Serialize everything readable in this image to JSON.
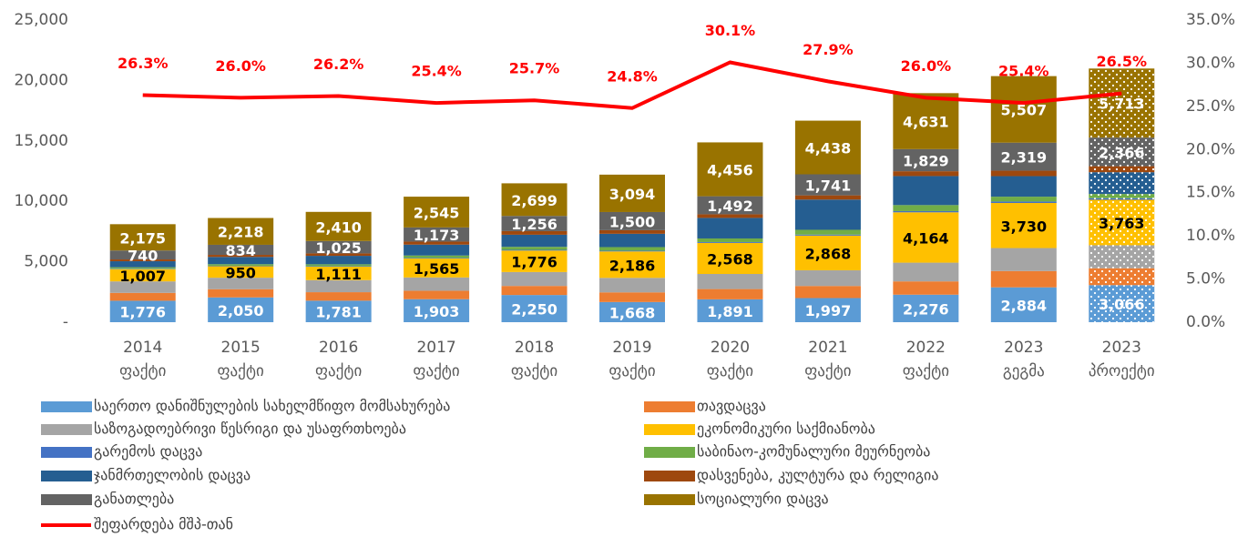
{
  "chart_data": {
    "type": "stacked_bar_line",
    "categories": [
      "2014\nფაქტი",
      "2015\nფაქტი",
      "2016\nფაქტი",
      "2017\nფაქტი",
      "2018\nფაქტი",
      "2019\nფაქტი",
      "2020\nფაქტი",
      "2021\nფაქტი",
      "2022\nფაქტი",
      "2023\nგეგმა",
      "2023\nპროექტი"
    ],
    "ylim": [
      0,
      25000
    ],
    "yticks": [
      {
        "value": 0,
        "label": "-"
      },
      {
        "value": 5000,
        "label": "5,000"
      },
      {
        "value": 10000,
        "label": "10,000"
      },
      {
        "value": 15000,
        "label": "15,000"
      },
      {
        "value": 20000,
        "label": "20,000"
      },
      {
        "value": 25000,
        "label": "25,000"
      }
    ],
    "y2lim": [
      0,
      35
    ],
    "y2ticks": [
      {
        "value": 0,
        "label": "0.0%"
      },
      {
        "value": 5,
        "label": "5.0%"
      },
      {
        "value": 10,
        "label": "10.0%"
      },
      {
        "value": 15,
        "label": "15.0%"
      },
      {
        "value": 20,
        "label": "20.0%"
      },
      {
        "value": 25,
        "label": "25.0%"
      },
      {
        "value": 30,
        "label": "30.0%"
      },
      {
        "value": 35,
        "label": "35.0%"
      }
    ],
    "series": [
      {
        "name": "საერთო დანიშნულების სახელმწიფო მომსახურება",
        "color": "#5b9bd5",
        "labeled": true,
        "label_color": "#ffffff",
        "values": [
          1776,
          2050,
          1781,
          1903,
          2250,
          1668,
          1891,
          1997,
          2276,
          2884,
          3066
        ],
        "value_labels": [
          "1,776",
          "2,050",
          "1,781",
          "1,903",
          "2,250",
          "1,668",
          "1,891",
          "1,997",
          "2,276",
          "2,884",
          "3,066"
        ]
      },
      {
        "name": "თავდაცვა",
        "color": "#ed7d31",
        "values": [
          650,
          680,
          700,
          700,
          750,
          800,
          850,
          1000,
          1100,
          1350,
          1400
        ]
      },
      {
        "name": "საზოგადოებრივი წესრიგი და უსაფრთხოება",
        "color": "#a5a5a5",
        "values": [
          950,
          950,
          1000,
          1100,
          1150,
          1200,
          1250,
          1300,
          1550,
          1900,
          1900
        ]
      },
      {
        "name": "ეკონომიკური საქმიანობა",
        "color": "#ffc000",
        "labeled": true,
        "label_color": "#000000",
        "values": [
          1007,
          950,
          1111,
          1565,
          1776,
          2186,
          2568,
          2868,
          4164,
          3730,
          3763
        ],
        "value_labels": [
          "1,007",
          "950",
          "1,111",
          "1,565",
          "1,776",
          "2,186",
          "2,568",
          "2,868",
          "4,164",
          "3,730",
          "3,763"
        ]
      },
      {
        "name": "გარემოს დაცვა",
        "color": "#4472c4",
        "values": [
          40,
          40,
          50,
          50,
          60,
          60,
          70,
          80,
          100,
          120,
          130
        ]
      },
      {
        "name": "საბინაო-კომუნალური მეურნეობა",
        "color": "#70ad47",
        "values": [
          120,
          130,
          150,
          200,
          250,
          300,
          300,
          400,
          500,
          400,
          350
        ]
      },
      {
        "name": "ჯანმრთელობის დაცვა",
        "color": "#255e91",
        "values": [
          500,
          600,
          700,
          900,
          1000,
          1100,
          1700,
          2500,
          2400,
          1700,
          1800
        ]
      },
      {
        "name": "დასვენება, კულტურა და რელიგია",
        "color": "#9e480e",
        "values": [
          150,
          170,
          200,
          250,
          300,
          300,
          300,
          350,
          400,
          450,
          500
        ]
      },
      {
        "name": "განათლება",
        "color": "#636363",
        "labeled": true,
        "label_color": "#ffffff",
        "values": [
          740,
          834,
          1025,
          1173,
          1256,
          1500,
          1492,
          1741,
          1829,
          2319,
          2366
        ],
        "value_labels": [
          "740",
          "834",
          "1,025",
          "1,173",
          "1,256",
          "1,500",
          "1,492",
          "1,741",
          "1,829",
          "2,319",
          "2,366"
        ]
      },
      {
        "name": "სოციალური დაცვა",
        "color": "#997300",
        "labeled": true,
        "label_color": "#ffffff",
        "values": [
          2175,
          2218,
          2410,
          2545,
          2699,
          3094,
          4456,
          4438,
          4631,
          5507,
          5713
        ],
        "value_labels": [
          "2,175",
          "2,218",
          "2,410",
          "2,545",
          "2,699",
          "3,094",
          "4,456",
          "4,438",
          "4,631",
          "5,507",
          "5,713"
        ]
      },
      {
        "name": "შეფარდება მშპ-თან",
        "color": "#ff0000",
        "axis": "y2",
        "type": "line",
        "label_color": "#ff0000",
        "values": [
          26.3,
          26.0,
          26.2,
          25.4,
          25.7,
          24.8,
          30.1,
          27.9,
          26.0,
          25.4,
          26.5
        ],
        "value_labels": [
          "26.3%",
          "26.0%",
          "26.2%",
          "25.4%",
          "25.7%",
          "24.8%",
          "30.1%",
          "27.9%",
          "26.0%",
          "25.4%",
          "26.5%"
        ]
      }
    ]
  }
}
